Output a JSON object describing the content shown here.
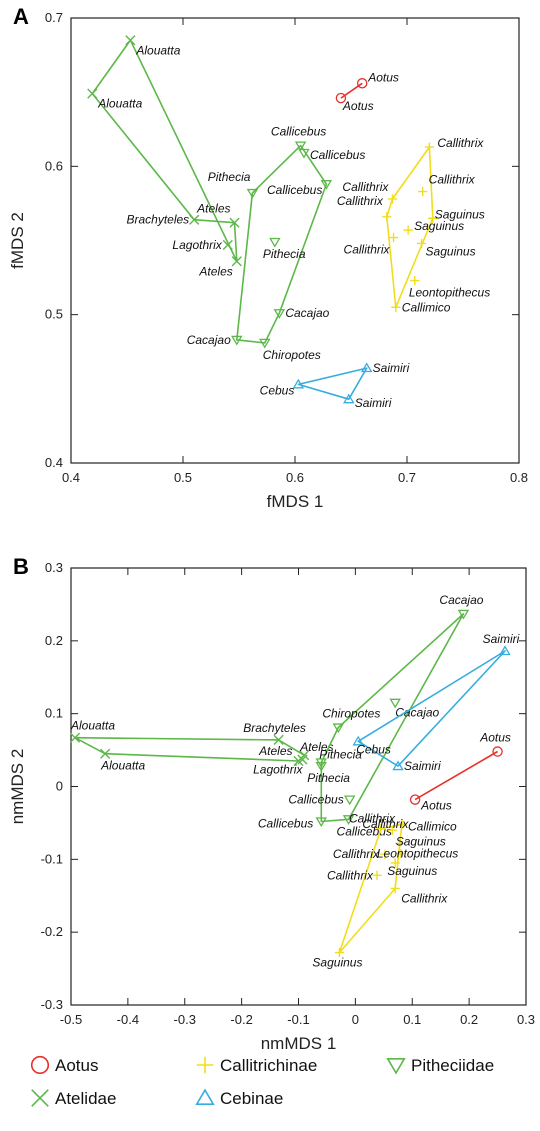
{
  "colors": {
    "Aotus": "#e8302a",
    "Atelidae": "#5cb848",
    "Callitrichinae": "#f2dd1a",
    "Cebinae": "#35ade0",
    "Pitheciidae": "#5cb848"
  },
  "legend": [
    {
      "group": "Aotus",
      "label": "Aotus",
      "marker": "circle"
    },
    {
      "group": "Callitrichinae",
      "label": "Callitrichinae",
      "marker": "plus"
    },
    {
      "group": "Pitheciidae",
      "label": "Pitheciidae",
      "marker": "triangle-down"
    },
    {
      "group": "Atelidae",
      "label": "Atelidae",
      "marker": "x"
    },
    {
      "group": "Cebinae",
      "label": "Cebinae",
      "marker": "triangle-up"
    }
  ],
  "chart_data": [
    {
      "type": "scatter",
      "panel_label": "A",
      "xlabel": "fMDS 1",
      "ylabel": "fMDS 2",
      "xlim": [
        0.4,
        0.8
      ],
      "ylim": [
        0.4,
        0.7
      ],
      "xticks": [
        "0.4",
        "0.5",
        "0.6",
        "0.7",
        "0.8"
      ],
      "yticks": [
        "0.4",
        "0.5",
        "0.6",
        "0.7"
      ],
      "series": [
        {
          "name": "Aotus",
          "points": [
            {
              "x": 0.66,
              "y": 0.656,
              "label": "Aotus"
            },
            {
              "x": 0.641,
              "y": 0.646,
              "label": "Aotus"
            }
          ],
          "hull": [
            0,
            1
          ]
        },
        {
          "name": "Atelidae",
          "points": [
            {
              "x": 0.453,
              "y": 0.685,
              "label": "Alouatta"
            },
            {
              "x": 0.419,
              "y": 0.649,
              "label": "Alouatta"
            },
            {
              "x": 0.51,
              "y": 0.564,
              "label": "Brachyteles"
            },
            {
              "x": 0.546,
              "y": 0.562,
              "label": "Ateles"
            },
            {
              "x": 0.54,
              "y": 0.547,
              "label": "Lagothrix"
            },
            {
              "x": 0.548,
              "y": 0.536,
              "label": "Ateles"
            }
          ],
          "hull": [
            0,
            5,
            3,
            2,
            1
          ]
        },
        {
          "name": "Pitheciidae",
          "points": [
            {
              "x": 0.605,
              "y": 0.614,
              "label": "Callicebus"
            },
            {
              "x": 0.608,
              "y": 0.609,
              "label": "Callicebus"
            },
            {
              "x": 0.562,
              "y": 0.582,
              "label": "Pithecia"
            },
            {
              "x": 0.628,
              "y": 0.588,
              "label": "Callicebus"
            },
            {
              "x": 0.582,
              "y": 0.549,
              "label": "Pithecia"
            },
            {
              "x": 0.586,
              "y": 0.501,
              "label": "Cacajao"
            },
            {
              "x": 0.548,
              "y": 0.483,
              "label": "Cacajao"
            },
            {
              "x": 0.573,
              "y": 0.481,
              "label": "Chiropotes"
            }
          ],
          "hull": [
            0,
            3,
            5,
            7,
            6,
            2
          ]
        },
        {
          "name": "Callitrichinae",
          "points": [
            {
              "x": 0.72,
              "y": 0.613,
              "label": "Callithrix"
            },
            {
              "x": 0.714,
              "y": 0.583,
              "label": "Callithrix"
            },
            {
              "x": 0.687,
              "y": 0.578,
              "label": "Callithrix"
            },
            {
              "x": 0.682,
              "y": 0.566,
              "label": "Callithrix"
            },
            {
              "x": 0.723,
              "y": 0.565,
              "label": "Saguinus"
            },
            {
              "x": 0.701,
              "y": 0.557,
              "label": "Saguinus"
            },
            {
              "x": 0.688,
              "y": 0.552,
              "label": "Callithrix"
            },
            {
              "x": 0.713,
              "y": 0.548,
              "label": "Saguinus"
            },
            {
              "x": 0.707,
              "y": 0.523,
              "label": "Leontopithecus"
            },
            {
              "x": 0.69,
              "y": 0.505,
              "label": "Callimico"
            }
          ],
          "hull": [
            0,
            4,
            9,
            3,
            2
          ]
        },
        {
          "name": "Cebinae",
          "points": [
            {
              "x": 0.664,
              "y": 0.464,
              "label": "Saimiri"
            },
            {
              "x": 0.603,
              "y": 0.453,
              "label": "Cebus"
            },
            {
              "x": 0.648,
              "y": 0.443,
              "label": "Saimiri"
            }
          ],
          "hull": [
            0,
            1,
            2
          ]
        }
      ]
    },
    {
      "type": "scatter",
      "panel_label": "B",
      "xlabel": "nmMDS 1",
      "ylabel": "nmMDS 2",
      "xlim": [
        -0.5,
        0.3
      ],
      "ylim": [
        -0.3,
        0.3
      ],
      "xticks": [
        "-0.5",
        "-0.4",
        "-0.3",
        "-0.2",
        "-0.1",
        "0",
        "0.1",
        "0.2",
        "0.3"
      ],
      "yticks": [
        "-0.3",
        "-0.2",
        "-0.1",
        "0",
        "0.1",
        "0.2",
        "0.3"
      ],
      "series": [
        {
          "name": "Aotus",
          "points": [
            {
              "x": 0.25,
              "y": 0.048,
              "label": "Aotus"
            },
            {
              "x": 0.105,
              "y": -0.018,
              "label": "Aotus"
            }
          ],
          "hull": [
            0,
            1
          ]
        },
        {
          "name": "Atelidae",
          "points": [
            {
              "x": -0.493,
              "y": 0.067,
              "label": "Alouatta"
            },
            {
              "x": -0.44,
              "y": 0.045,
              "label": "Alouatta"
            },
            {
              "x": -0.135,
              "y": 0.064,
              "label": "Brachyteles"
            },
            {
              "x": -0.09,
              "y": 0.043,
              "label": "Ateles"
            },
            {
              "x": -0.093,
              "y": 0.037,
              "label": "Lagothrix"
            },
            {
              "x": -0.1,
              "y": 0.035,
              "label": "Ateles"
            }
          ],
          "hull": [
            0,
            2,
            3,
            5,
            1
          ]
        },
        {
          "name": "Pitheciidae",
          "points": [
            {
              "x": 0.19,
              "y": 0.237,
              "label": "Cacajao"
            },
            {
              "x": 0.07,
              "y": 0.115,
              "label": "Cacajao"
            },
            {
              "x": -0.03,
              "y": 0.081,
              "label": "Chiropotes"
            },
            {
              "x": -0.06,
              "y": 0.033,
              "label": "Pithecia"
            },
            {
              "x": -0.06,
              "y": 0.028,
              "label": "Pithecia"
            },
            {
              "x": -0.01,
              "y": -0.018,
              "label": "Callicebus"
            },
            {
              "x": -0.06,
              "y": -0.048,
              "label": "Callicebus"
            },
            {
              "x": -0.012,
              "y": -0.045,
              "label": "Callicebus"
            }
          ],
          "hull": [
            0,
            7,
            6,
            3,
            2
          ]
        },
        {
          "name": "Cebinae",
          "points": [
            {
              "x": 0.263,
              "y": 0.186,
              "label": "Saimiri"
            },
            {
              "x": 0.005,
              "y": 0.062,
              "label": "Cebus"
            },
            {
              "x": 0.075,
              "y": 0.028,
              "label": "Saimiri"
            }
          ],
          "hull": [
            0,
            1,
            2
          ]
        },
        {
          "name": "Callitrichinae",
          "points": [
            {
              "x": 0.082,
              "y": -0.052,
              "label": "Callimico"
            },
            {
              "x": 0.045,
              "y": -0.058,
              "label": "Callithrix"
            },
            {
              "x": 0.065,
              "y": -0.06,
              "label": "Callithrix"
            },
            {
              "x": 0.078,
              "y": -0.078,
              "label": "Saguinus"
            },
            {
              "x": 0.052,
              "y": -0.093,
              "label": "Callithrix"
            },
            {
              "x": 0.08,
              "y": -0.092,
              "label": "Leontopithecus"
            },
            {
              "x": 0.07,
              "y": -0.105,
              "label": "Saguinus"
            },
            {
              "x": 0.038,
              "y": -0.122,
              "label": "Callithrix"
            },
            {
              "x": 0.07,
              "y": -0.14,
              "label": "Callithrix"
            },
            {
              "x": -0.028,
              "y": -0.228,
              "label": "Saguinus"
            }
          ],
          "hull": [
            0,
            3,
            8,
            9,
            1
          ]
        }
      ]
    }
  ]
}
